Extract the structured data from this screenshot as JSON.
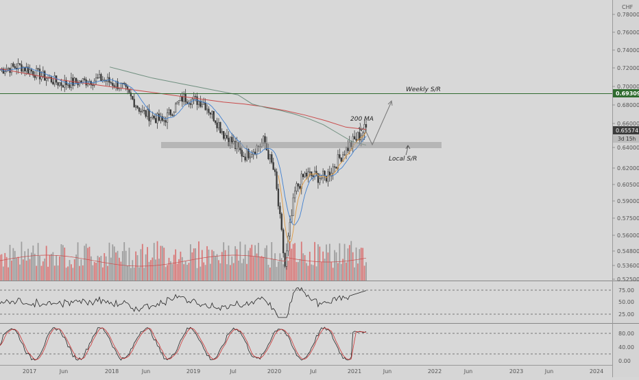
{
  "currency": "CHF",
  "price_axis": {
    "ticks": [
      "0.78000",
      "0.76000",
      "0.74000",
      "0.72000",
      "0.70000",
      "0.68000",
      "0.66000",
      "0.64000",
      "0.62000",
      "0.60500",
      "0.59000",
      "0.57500",
      "0.56000",
      "0.54800",
      "0.53600",
      "0.52500"
    ],
    "current_price": "0.65574",
    "countdown": "3d 15h",
    "level_label": "0.69309",
    "colors": {
      "level": "#2f6b2f",
      "current": "#3c3c3c"
    }
  },
  "rsi_axis": {
    "ticks": [
      "75.00",
      "50.00",
      "25.00"
    ]
  },
  "stoch_axis": {
    "ticks": [
      "80.00",
      "40.00",
      "0.00"
    ]
  },
  "time_axis": [
    "2017",
    "Jun",
    "2018",
    "Jun",
    "2019",
    "Jul",
    "2020",
    "Jul",
    "2021",
    "Jun",
    "2022",
    "Jun",
    "2023",
    "Jun",
    "2024"
  ],
  "annotations": {
    "weekly_sr": "Weekly S/R",
    "ma_label": "200 MA",
    "local_sr": "Local S/R"
  },
  "colors": {
    "up": "#3a3a3a",
    "down": "#3a3a3a",
    "ma200": "#c94a4a",
    "ma_slow": "#6f8f7f",
    "ma_fast": "#3f7fd0",
    "ma_orange": "#e09a40",
    "vol_up": "#d86060",
    "vol_down": "#909090",
    "stoch_k": "#222222",
    "stoch_d": "#cc3333"
  },
  "chart_data": {
    "type": "candlestick",
    "symbol_currency": "CHF",
    "ylim": [
      0.525,
      0.785
    ],
    "x": [
      "2016-10",
      "2017-01",
      "2017-04",
      "2017-07",
      "2017-10",
      "2018-01",
      "2018-04",
      "2018-07",
      "2018-10",
      "2019-01",
      "2019-04",
      "2019-07",
      "2019-10",
      "2020-01",
      "2020-04",
      "2020-07",
      "2020-10",
      "2021-01",
      "2021-02"
    ],
    "close": [
      0.718,
      0.722,
      0.712,
      0.703,
      0.705,
      0.708,
      0.7,
      0.672,
      0.662,
      0.688,
      0.683,
      0.652,
      0.632,
      0.645,
      0.585,
      0.614,
      0.611,
      0.638,
      0.656
    ],
    "series": [
      {
        "name": "200 MA",
        "values": [
          0.719,
          0.715,
          0.711,
          0.707,
          0.704,
          0.701,
          0.698,
          0.695,
          0.692,
          0.689,
          0.686,
          0.683,
          0.681,
          0.678,
          0.674,
          0.669,
          0.663,
          0.657,
          0.655
        ]
      }
    ],
    "levels": [
      {
        "label": "Weekly S/R",
        "value": 0.69309
      },
      {
        "label": "Local S/R",
        "value": 0.642
      }
    ],
    "rsi": {
      "ylim": [
        0,
        100
      ],
      "ticks": [
        75,
        50,
        25
      ],
      "last": 70
    },
    "stochastic": {
      "ylim": [
        0,
        100
      ],
      "ticks": [
        80,
        40,
        0
      ],
      "last": 90
    }
  }
}
